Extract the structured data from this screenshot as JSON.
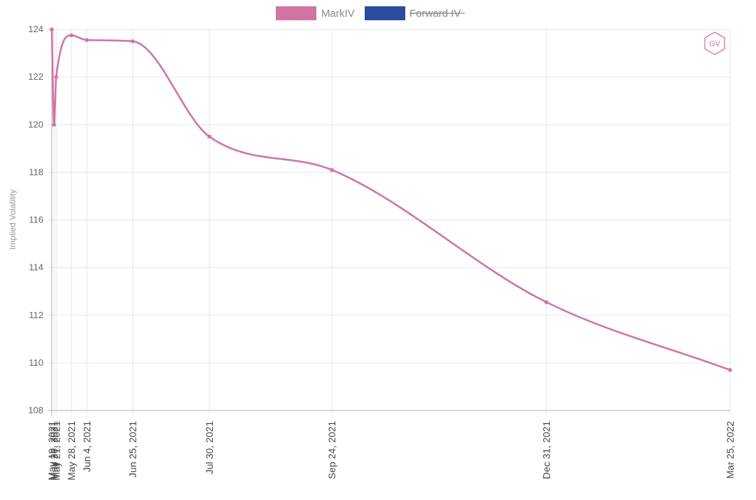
{
  "legend": [
    {
      "label": "MarkIV",
      "color": "#d174a4",
      "hidden": false
    },
    {
      "label": "Forward IV",
      "color": "#2c4a9e",
      "hidden": true
    }
  ],
  "logo": {
    "text": "GV",
    "color": "#d174a4"
  },
  "chart_data": {
    "type": "line",
    "ylabel": "Implied Volatility",
    "xlabel": "",
    "ylim": [
      108,
      124
    ],
    "y_ticks": [
      108,
      110,
      112,
      114,
      116,
      118,
      120,
      122,
      124
    ],
    "grid": true,
    "legend_position": "top-center",
    "x": [
      "May 19, 2021",
      "May 20, 2021",
      "May 21, 2021",
      "May 28, 2021",
      "Jun 4, 2021",
      "Jun 25, 2021",
      "Jul 30, 2021",
      "Sep 24, 2021",
      "Dec 31, 2021",
      "Mar 25, 2022"
    ],
    "x_tick_labels": [
      "May 19, 2021",
      "May 20, 2021",
      "May 21, 2021",
      "May 28, 2021",
      "Jun 4, 2021",
      "Jun 25, 2021",
      "Jul 30, 2021",
      "Sep 24, 2021",
      "Dec 31, 2021",
      "Mar 25, 2022"
    ],
    "series": [
      {
        "name": "MarkIV",
        "color": "#d174a4",
        "values": [
          124.0,
          120.0,
          122.0,
          123.75,
          123.55,
          123.5,
          119.5,
          118.1,
          112.55,
          109.7
        ]
      }
    ]
  }
}
